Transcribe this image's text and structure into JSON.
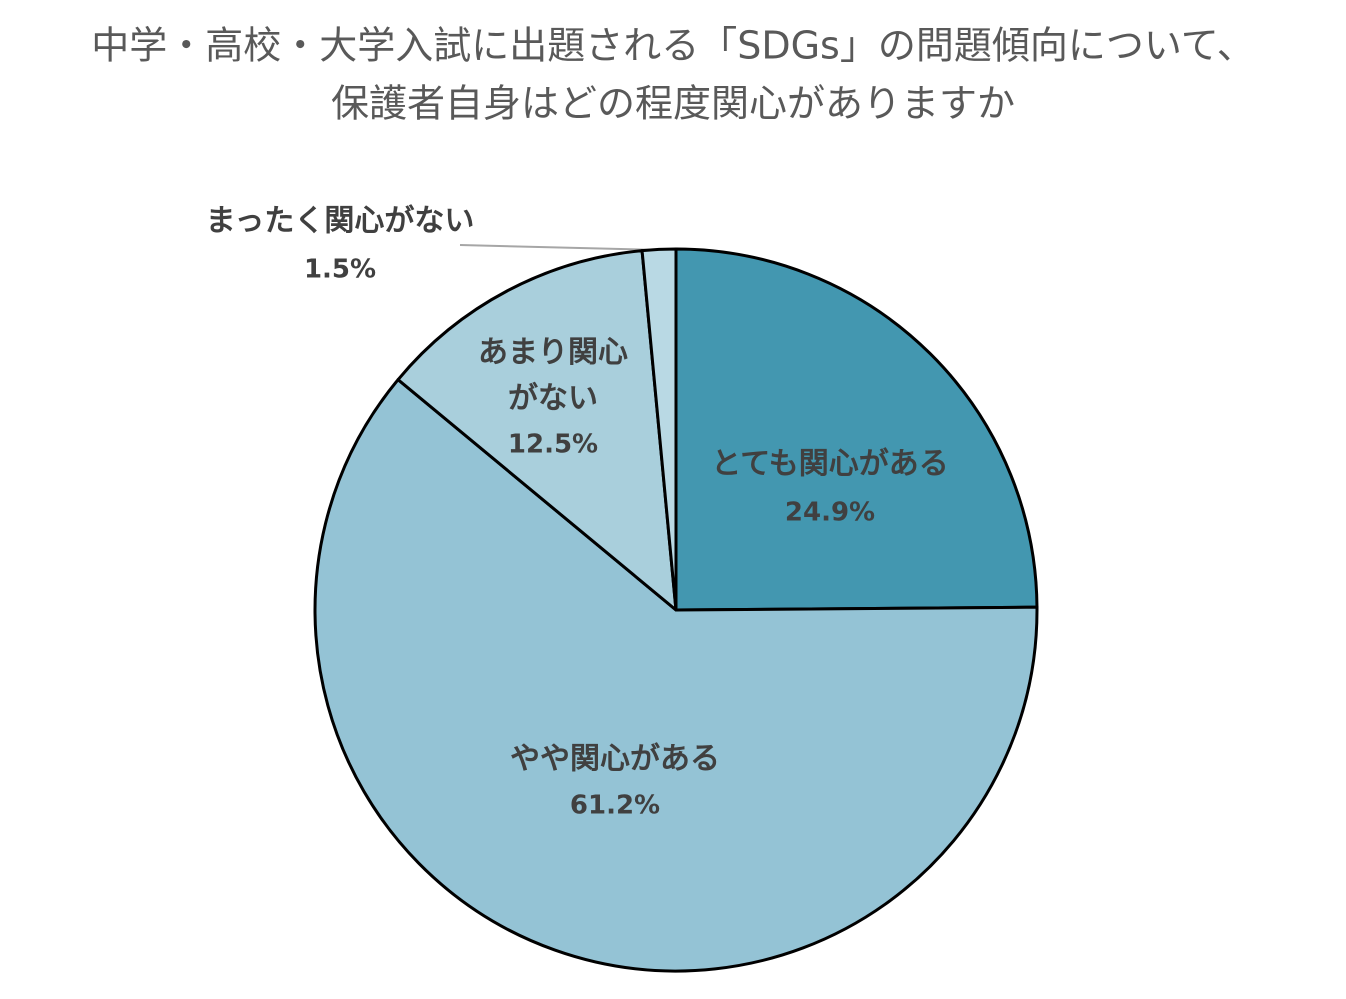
{
  "chart_data": {
    "type": "pie",
    "title": [
      "中学・高校・大学入試に出題される「SDGs」の問題傾向について、",
      "保護者自身はどの程度関心がありますか"
    ],
    "categories": [
      "とても関心がある",
      "やや関心がある",
      "あまり関心がない",
      "まったく関心がない"
    ],
    "values": [
      24.9,
      61.2,
      12.5,
      1.5
    ],
    "value_labels": [
      "24.9%",
      "61.2%",
      "12.5%",
      "1.5%"
    ],
    "colors": [
      "#4397b0",
      "#94c3d5",
      "#a9cfdc",
      "#b9d9e4"
    ]
  }
}
